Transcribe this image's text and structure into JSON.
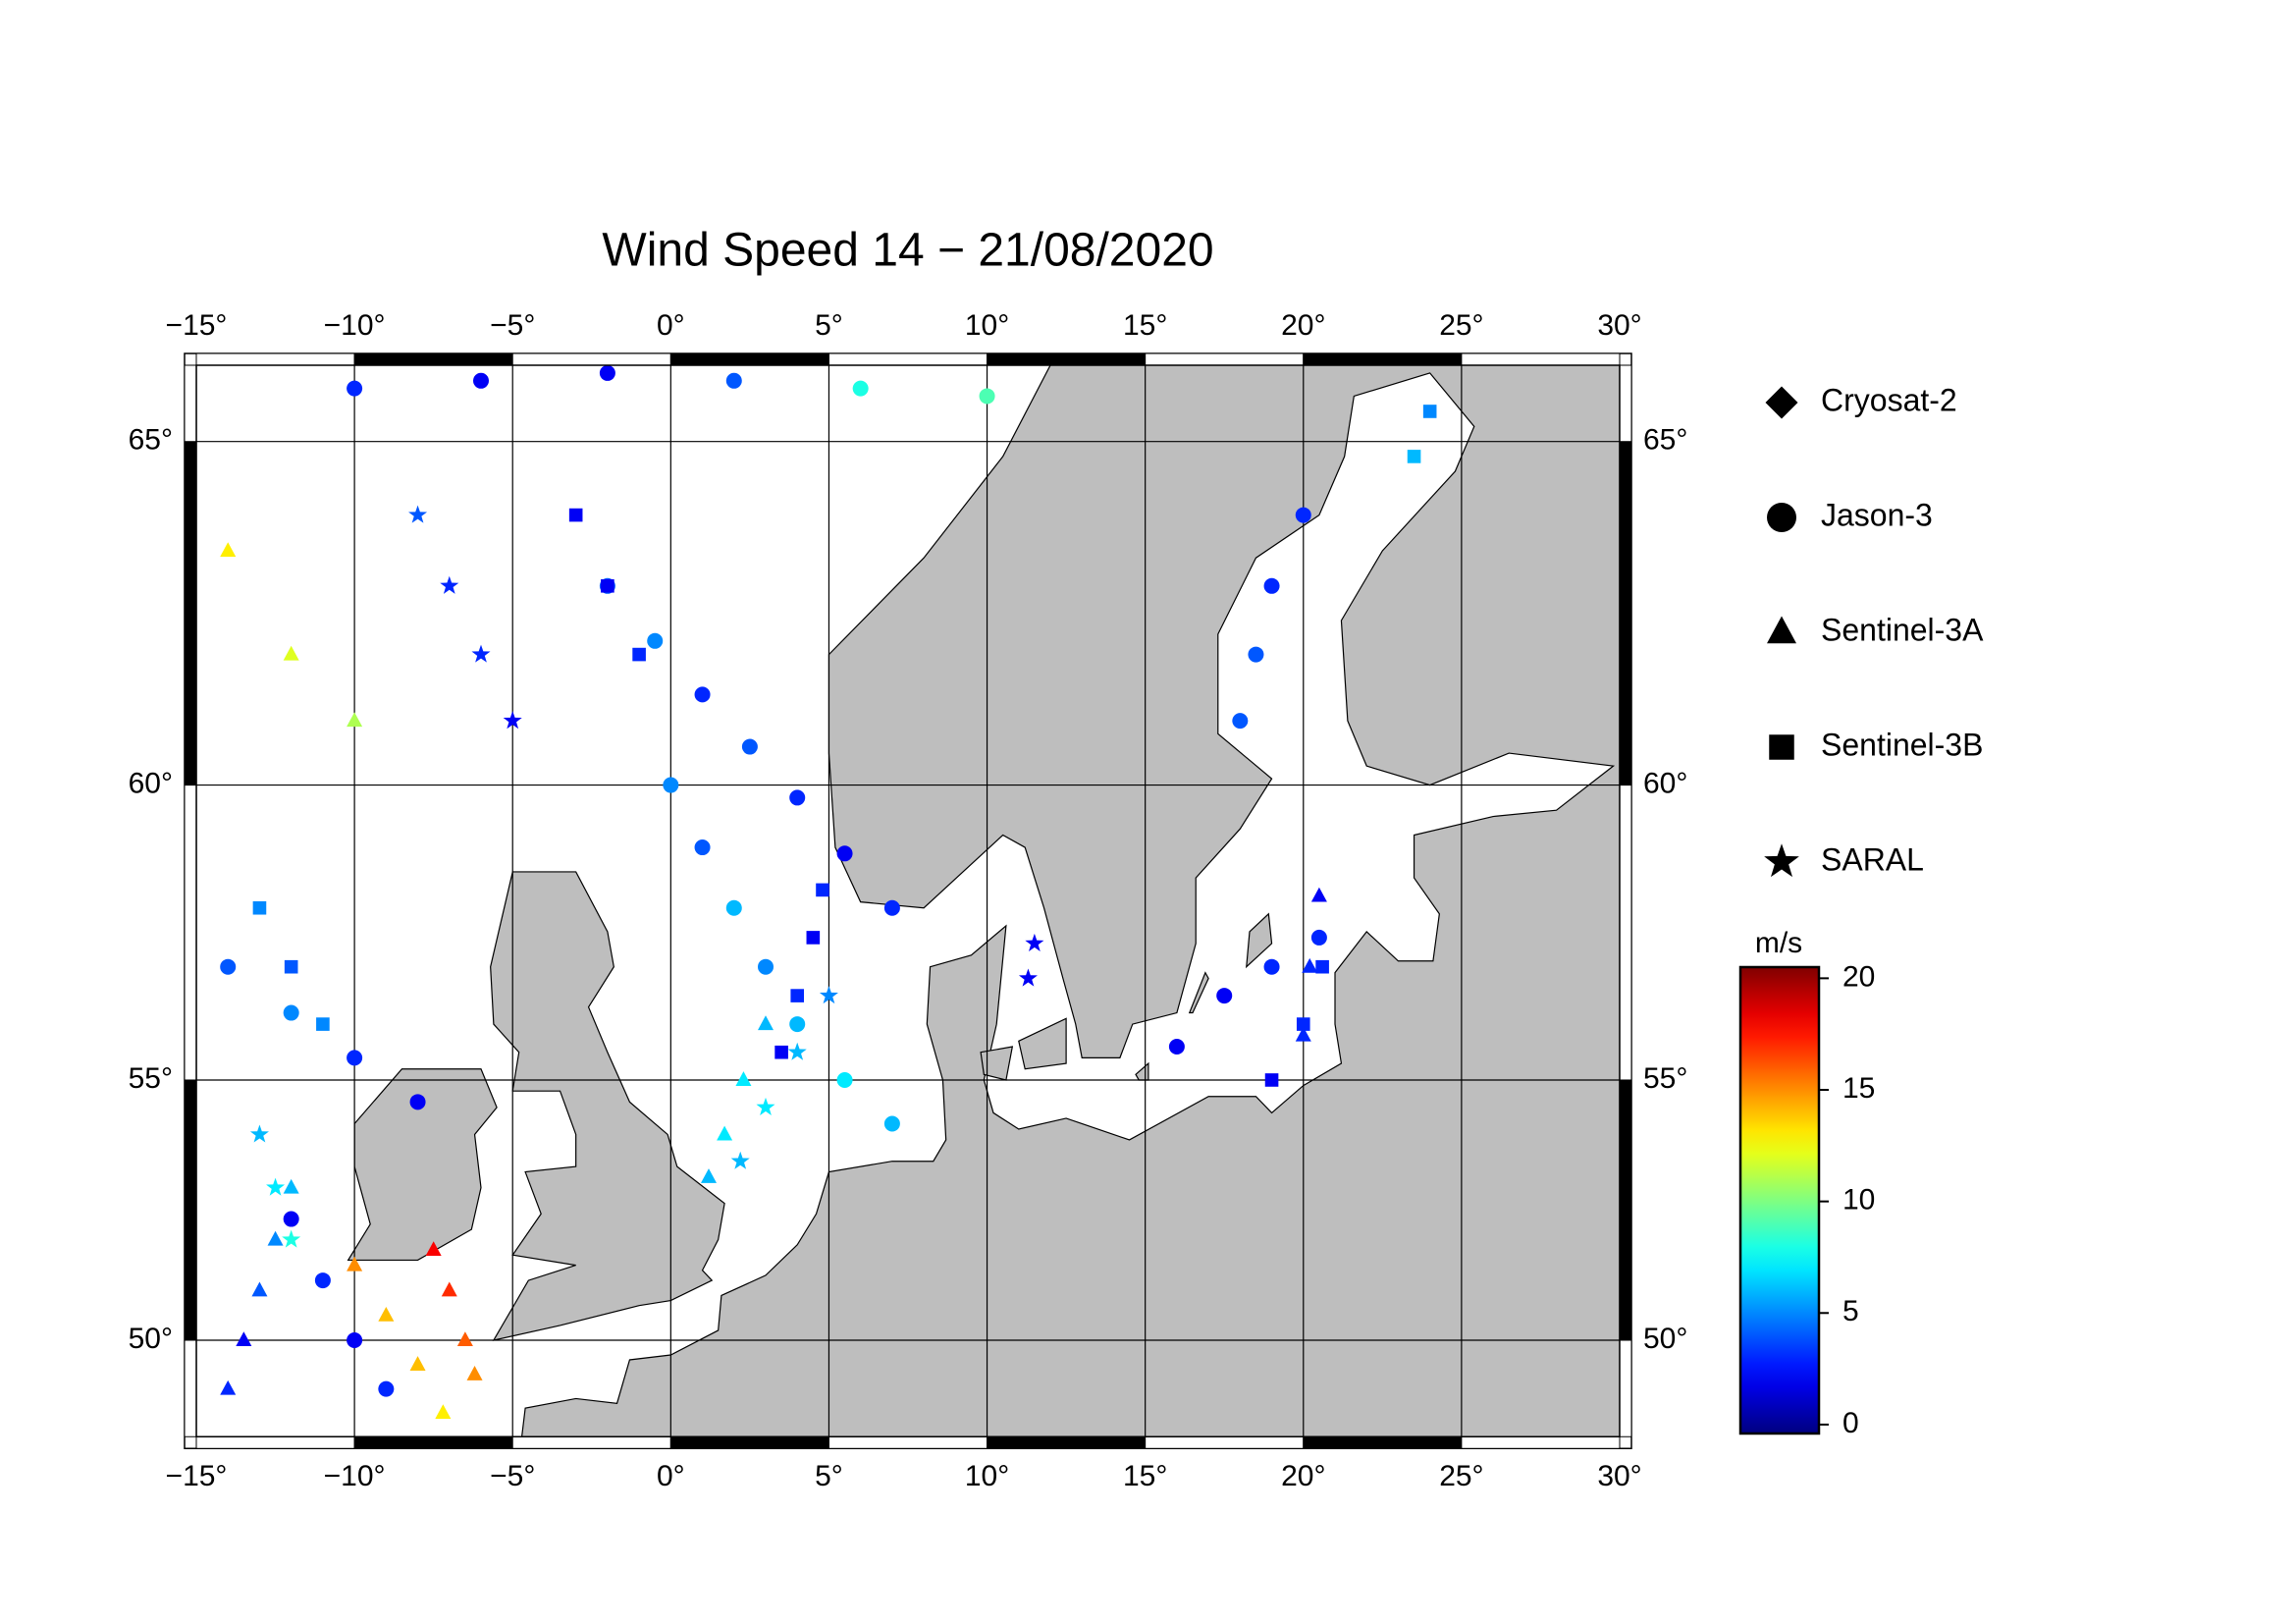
{
  "chart_data": {
    "type": "map",
    "title": "Wind Speed 14 − 21/08/2020",
    "projection": "mercator",
    "xlim": [
      -15,
      30
    ],
    "ylim": [
      48,
      66
    ],
    "xticks": [
      {
        "value": -15,
        "label": "−15°"
      },
      {
        "value": -10,
        "label": "−10°"
      },
      {
        "value": -5,
        "label": "−5°"
      },
      {
        "value": 0,
        "label": "0°"
      },
      {
        "value": 5,
        "label": "5°"
      },
      {
        "value": 10,
        "label": "10°"
      },
      {
        "value": 15,
        "label": "15°"
      },
      {
        "value": 20,
        "label": "20°"
      },
      {
        "value": 25,
        "label": "25°"
      },
      {
        "value": 30,
        "label": "30°"
      }
    ],
    "yticks": [
      {
        "value": 50,
        "label": "50°"
      },
      {
        "value": 55,
        "label": "55°"
      },
      {
        "value": 60,
        "label": "60°"
      },
      {
        "value": 65,
        "label": "65°"
      }
    ],
    "grid": true,
    "land_color": "#bebebe",
    "colorbar": {
      "label": "m/s",
      "colormap": "jet",
      "clim": [
        -0.4,
        20.5
      ],
      "ticks": [
        0,
        5,
        10,
        15,
        20
      ]
    },
    "series": [
      {
        "name": "Cryosat-2",
        "marker": "diamond",
        "lon": [],
        "lat": [],
        "speed": []
      },
      {
        "name": "Jason-3",
        "marker": "circle",
        "lon": [
          -2,
          -0.5,
          1,
          2.5,
          4,
          5.5,
          7,
          0,
          1,
          2,
          3,
          4,
          5.5,
          7,
          -10,
          -6,
          -2,
          2,
          6,
          10,
          -14,
          -12,
          -10,
          -8,
          16,
          17.5,
          19,
          20.5,
          18,
          18.5,
          19,
          20,
          -9,
          -10,
          -11,
          -12
        ],
        "lat": [
          63,
          62.2,
          61.4,
          60.6,
          59.8,
          58.9,
          58,
          60,
          59,
          58,
          57,
          56,
          55,
          54.2,
          65.7,
          65.8,
          65.9,
          65.8,
          65.7,
          65.6,
          57,
          56.2,
          55.4,
          54.6,
          55.6,
          56.5,
          57,
          57.5,
          61,
          62,
          63,
          64,
          49,
          50,
          51.2,
          52.4
        ],
        "speed": [
          4,
          5,
          3,
          4,
          3,
          2,
          3,
          5,
          4,
          6,
          5,
          6,
          7,
          6,
          3,
          2,
          2,
          4,
          8,
          9,
          4,
          5,
          3,
          2,
          2,
          2,
          3,
          3,
          4,
          4,
          3,
          3,
          3,
          2,
          3,
          2
        ]
      },
      {
        "name": "Sentinel-3A",
        "marker": "triangle",
        "lon": [
          -14,
          -13.5,
          -13,
          -12.5,
          -12,
          -10,
          -9,
          -8,
          -7.2,
          -7.5,
          -7,
          -6.5,
          -6.2,
          3,
          2.3,
          1.7,
          1.2,
          20,
          20.2,
          20.5,
          -14,
          -12,
          -10
        ],
        "lat": [
          49,
          50,
          51,
          52,
          53,
          51.5,
          50.5,
          49.5,
          48.5,
          51.8,
          51,
          50,
          49.3,
          56,
          55,
          54,
          53.2,
          55.8,
          57,
          58.2,
          63.5,
          62,
          61
        ],
        "speed": [
          3,
          2,
          4,
          5,
          6,
          15,
          14,
          14,
          13,
          18,
          17,
          16,
          15,
          6,
          7,
          7,
          6,
          3,
          3,
          2,
          13,
          12,
          11
        ]
      },
      {
        "name": "Sentinel-3B",
        "marker": "square",
        "lon": [
          3.5,
          4,
          4.5,
          4.8,
          -3,
          -2,
          -1,
          19,
          20,
          20.6,
          -13,
          -12,
          -11,
          24,
          23.5
        ],
        "lat": [
          55.5,
          56.5,
          57.5,
          58.3,
          64,
          63,
          62,
          55,
          56,
          57,
          58,
          57,
          56,
          65.4,
          64.8
        ],
        "speed": [
          2,
          3,
          2,
          3,
          2,
          2,
          3,
          2,
          3,
          3,
          5,
          4,
          5,
          5,
          6
        ]
      },
      {
        "name": "SARAL",
        "marker": "star",
        "lon": [
          2.2,
          3,
          4,
          5,
          -8,
          -7,
          -6,
          -5,
          11.3,
          11.5,
          -13,
          -12.5,
          -12
        ],
        "lat": [
          53.5,
          54.5,
          55.5,
          56.5,
          64,
          63,
          62,
          61,
          56.8,
          57.4,
          54,
          53,
          52
        ],
        "speed": [
          6,
          7,
          6,
          5,
          4,
          3,
          3,
          2,
          2,
          2,
          6,
          7,
          8
        ]
      }
    ]
  }
}
